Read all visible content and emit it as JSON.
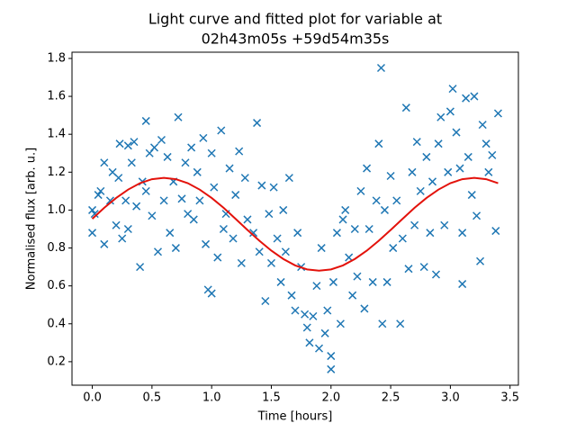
{
  "chart_data": {
    "type": "scatter",
    "title": [
      "Light curve and fitted plot for variable at",
      "02h43m05s +59d54m35s"
    ],
    "x_label": "Time [hours]",
    "y_label": "Normalised flux [arb. u.]",
    "xlim": [
      -0.17,
      3.57
    ],
    "ylim": [
      0.076,
      1.833
    ],
    "xticks": [
      {
        "value": 0,
        "label": "0.0"
      },
      0.5,
      {
        "value": 1,
        "label": "1.0"
      },
      1.5,
      {
        "value": 2,
        "label": "2.0"
      },
      2.5,
      {
        "value": 3,
        "label": "3.0"
      },
      3.5
    ],
    "yticks": [
      0.2,
      0.4,
      0.6,
      0.8,
      {
        "value": 1,
        "label": "1.0"
      },
      1.2,
      1.4,
      1.6,
      1.8
    ],
    "series": [
      {
        "color": "#1f77b4",
        "marker": "x",
        "x": [
          0,
          0,
          0.02,
          0.05,
          0.07,
          0.1,
          0.1,
          0.15,
          0.17,
          0.2,
          0.22,
          0.23,
          0.25,
          0.28,
          0.3,
          0.3,
          0.33,
          0.35,
          0.37,
          0.4,
          0.42,
          0.45,
          0.45,
          0.48,
          0.5,
          0.52,
          0.55,
          0.58,
          0.6,
          0.63,
          0.65,
          0.68,
          0.7,
          0.72,
          0.75,
          0.78,
          0.8,
          0.83,
          0.85,
          0.88,
          0.9,
          0.93,
          0.95,
          0.97,
          1.0,
          1.0,
          1.02,
          1.05,
          1.08,
          1.1,
          1.12,
          1.15,
          1.18,
          1.2,
          1.23,
          1.25,
          1.28,
          1.3,
          1.35,
          1.38,
          1.4,
          1.42,
          1.45,
          1.48,
          1.5,
          1.52,
          1.55,
          1.58,
          1.6,
          1.62,
          1.65,
          1.67,
          1.7,
          1.72,
          1.75,
          1.78,
          1.8,
          1.82,
          1.85,
          1.88,
          1.9,
          1.92,
          1.95,
          1.97,
          2.0,
          2.0,
          2.02,
          2.05,
          2.08,
          2.1,
          2.12,
          2.15,
          2.18,
          2.2,
          2.22,
          2.25,
          2.28,
          2.3,
          2.32,
          2.35,
          2.38,
          2.4,
          2.42,
          2.43,
          2.45,
          2.47,
          2.5,
          2.52,
          2.55,
          2.58,
          2.6,
          2.63,
          2.65,
          2.68,
          2.7,
          2.72,
          2.75,
          2.78,
          2.8,
          2.83,
          2.85,
          2.88,
          2.9,
          2.92,
          2.95,
          2.98,
          3.0,
          3.02,
          3.05,
          3.08,
          3.1,
          3.1,
          3.13,
          3.15,
          3.18,
          3.2,
          3.22,
          3.25,
          3.27,
          3.3,
          3.32,
          3.35,
          3.38,
          3.4
        ],
        "values": [
          1.0,
          0.88,
          0.98,
          1.08,
          1.1,
          0.82,
          1.25,
          1.05,
          1.2,
          0.92,
          1.17,
          1.35,
          0.85,
          1.05,
          0.9,
          1.34,
          1.25,
          1.36,
          1.02,
          0.7,
          1.15,
          1.47,
          1.1,
          1.3,
          0.97,
          1.33,
          0.78,
          1.37,
          1.05,
          1.28,
          0.88,
          1.15,
          0.8,
          1.49,
          1.06,
          1.25,
          0.98,
          1.33,
          0.95,
          1.2,
          1.05,
          1.38,
          0.82,
          0.58,
          0.56,
          1.3,
          1.12,
          0.75,
          1.42,
          0.9,
          0.98,
          1.22,
          0.85,
          1.08,
          1.31,
          0.72,
          1.17,
          0.95,
          0.88,
          1.46,
          0.78,
          1.13,
          0.52,
          0.98,
          0.72,
          1.12,
          0.85,
          0.62,
          1.0,
          0.78,
          1.17,
          0.55,
          0.47,
          0.88,
          0.7,
          0.45,
          0.38,
          0.3,
          0.44,
          0.6,
          0.27,
          0.8,
          0.35,
          0.47,
          0.16,
          0.23,
          0.62,
          0.88,
          0.4,
          0.95,
          1.0,
          0.75,
          0.55,
          0.9,
          0.65,
          1.1,
          0.48,
          1.22,
          0.9,
          0.62,
          1.05,
          1.35,
          1.75,
          0.4,
          1.0,
          0.62,
          1.18,
          0.8,
          1.05,
          0.4,
          0.85,
          1.54,
          0.69,
          1.2,
          0.92,
          1.36,
          1.1,
          0.7,
          1.28,
          0.88,
          1.15,
          0.66,
          1.35,
          1.49,
          0.92,
          1.2,
          1.52,
          1.64,
          1.41,
          1.22,
          0.61,
          0.88,
          1.59,
          1.28,
          1.08,
          1.6,
          0.97,
          0.73,
          1.45,
          1.35,
          1.2,
          1.29,
          0.89,
          1.51
        ]
      },
      {
        "color": "#e3120b",
        "marker": "line",
        "x": [
          0,
          0.1,
          0.2,
          0.3,
          0.4,
          0.5,
          0.6,
          0.7,
          0.8,
          0.9,
          1.0,
          1.1,
          1.2,
          1.3,
          1.4,
          1.5,
          1.6,
          1.7,
          1.8,
          1.9,
          2.0,
          2.1,
          2.2,
          2.3,
          2.4,
          2.5,
          2.6,
          2.7,
          2.8,
          2.9,
          3.0,
          3.1,
          3.2,
          3.3,
          3.4
        ],
        "values": [
          0.954,
          1.012,
          1.064,
          1.108,
          1.142,
          1.163,
          1.17,
          1.163,
          1.142,
          1.108,
          1.064,
          1.012,
          0.954,
          0.895,
          0.838,
          0.786,
          0.742,
          0.708,
          0.687,
          0.68,
          0.687,
          0.708,
          0.742,
          0.786,
          0.838,
          0.895,
          0.954,
          1.012,
          1.064,
          1.108,
          1.142,
          1.163,
          1.17,
          1.163,
          1.142
        ]
      }
    ]
  }
}
